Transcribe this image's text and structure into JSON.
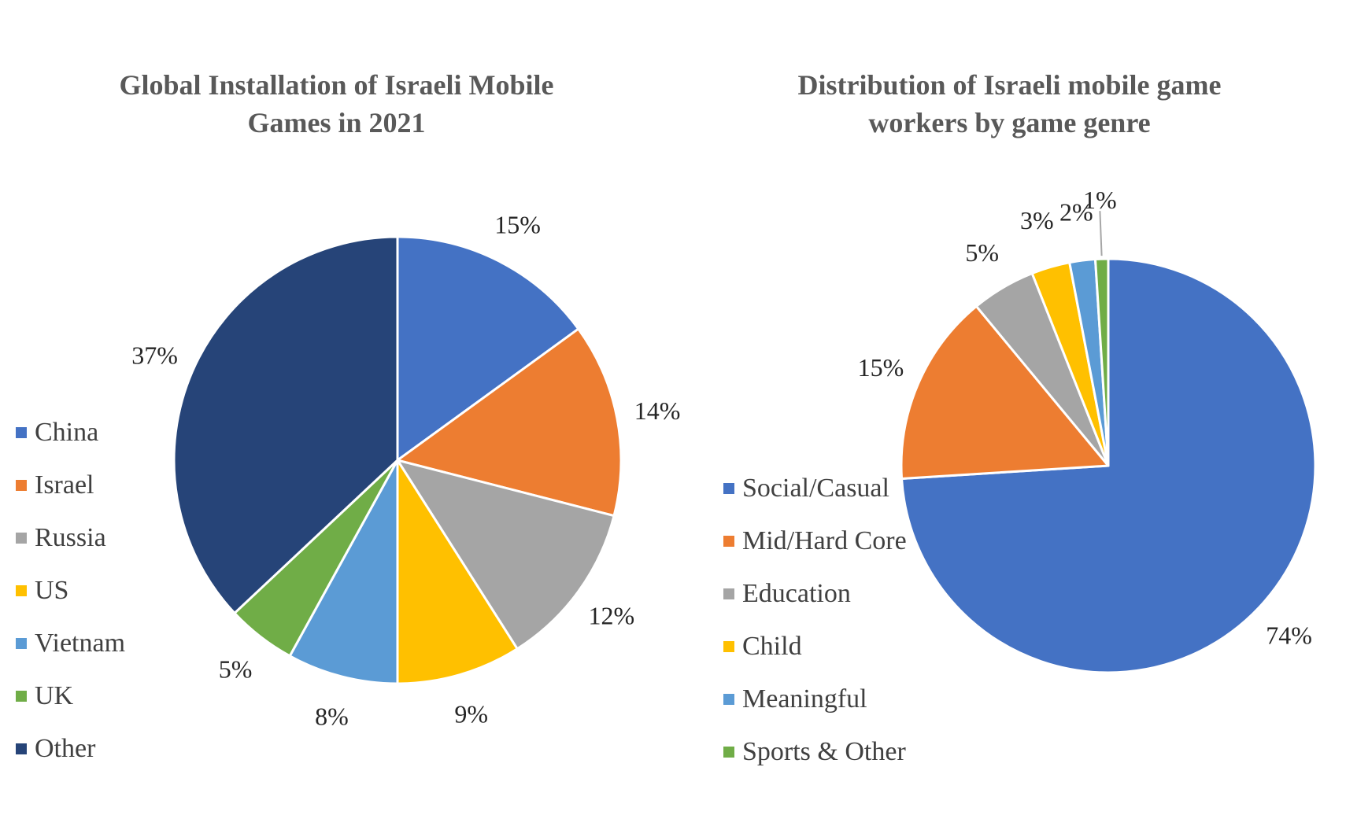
{
  "chart_data": [
    {
      "type": "pie",
      "title_lines": [
        "Global Installation of Israeli Mobile",
        "Games in 2021"
      ],
      "categories": [
        "China",
        "Israel",
        "Russia",
        "US",
        "Vietnam",
        "UK",
        "Other"
      ],
      "values": [
        15,
        14,
        12,
        9,
        8,
        5,
        37
      ],
      "labels": [
        "15%",
        "14%",
        "12%",
        "9%",
        "8%",
        "5%",
        "37%"
      ],
      "colors": [
        "#4472C4",
        "#ED7D31",
        "#A5A5A5",
        "#FFC000",
        "#5B9BD5",
        "#70AD47",
        "#264478"
      ],
      "legend_position": "left"
    },
    {
      "type": "pie",
      "title_lines": [
        "Distribution of Israeli mobile game",
        "workers by game genre"
      ],
      "categories": [
        "Social/Casual",
        "Mid/Hard Core",
        "Education",
        "Child",
        "Meaningful",
        "Sports & Other"
      ],
      "values": [
        74,
        15,
        5,
        3,
        2,
        1
      ],
      "labels": [
        "74%",
        "15%",
        "5%",
        "3%",
        "2%",
        "1%"
      ],
      "colors": [
        "#4472C4",
        "#ED7D31",
        "#A5A5A5",
        "#FFC000",
        "#5B9BD5",
        "#70AD47"
      ],
      "legend_position": "left"
    }
  ]
}
